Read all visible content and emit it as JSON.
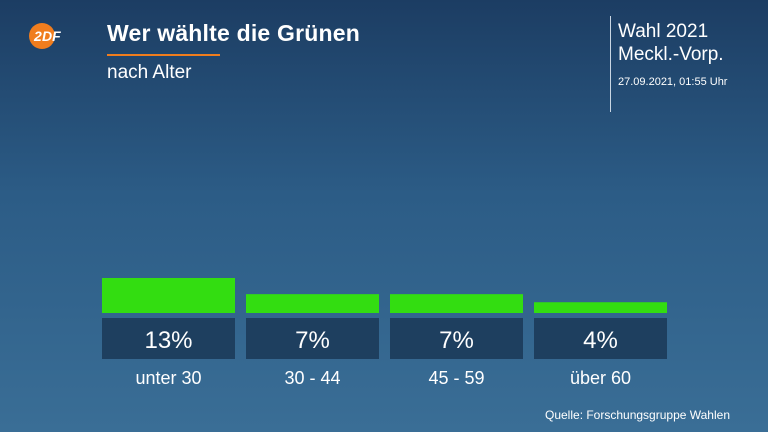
{
  "header": {
    "title": "Wer wählte die Grünen",
    "subtitle": "nach Alter",
    "election": "Wahl 2021",
    "region": "Meckl.-Vorp.",
    "timestamp": "27.09.2021, 01:55 Uhr"
  },
  "logo": {
    "text": "ZDF",
    "color": "#f07d1e"
  },
  "source": "Quelle: Forschungsgruppe Wahlen",
  "colors": {
    "bar": "#33dd11",
    "label_box": "#1e3f5f",
    "accent": "#f07d1e"
  },
  "chart_data": {
    "type": "bar",
    "title": "Wer wählte die Grünen",
    "subtitle": "nach Alter",
    "categories": [
      "unter 30",
      "30 - 44",
      "45 - 59",
      "über 60"
    ],
    "values": [
      13,
      7,
      7,
      4
    ],
    "value_labels": [
      "13%",
      "7%",
      "7%",
      "4%"
    ],
    "unit": "%",
    "xlabel": "",
    "ylabel": "",
    "grid": false
  }
}
